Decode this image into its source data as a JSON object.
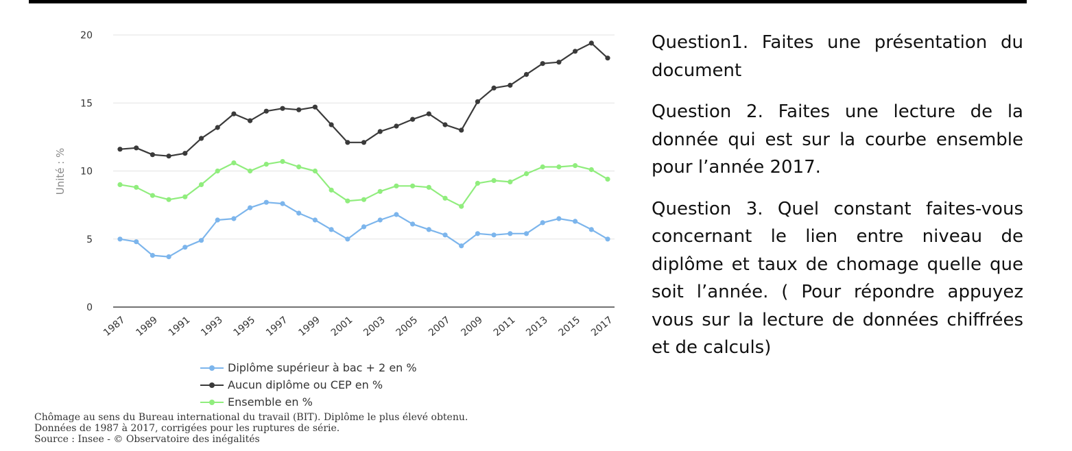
{
  "chart_data": {
    "type": "line",
    "x": [
      1987,
      1988,
      1989,
      1990,
      1991,
      1992,
      1993,
      1994,
      1995,
      1996,
      1997,
      1998,
      1999,
      2000,
      2001,
      2002,
      2003,
      2004,
      2005,
      2006,
      2007,
      2008,
      2009,
      2010,
      2011,
      2012,
      2013,
      2014,
      2015,
      2016,
      2017
    ],
    "x_tick_labels": [
      "1987",
      "1989",
      "1991",
      "1993",
      "1995",
      "1997",
      "1999",
      "2001",
      "2003",
      "2005",
      "2007",
      "2009",
      "2011",
      "2013",
      "2015",
      "2017"
    ],
    "y_tick_labels": [
      "0",
      "5",
      "10",
      "15",
      "20"
    ],
    "ylim": [
      0,
      20
    ],
    "ylabel": "Unité : %",
    "grid": "horizontal",
    "legend_position": "bottom",
    "series": [
      {
        "name": "Diplôme supérieur à bac + 2 en %",
        "color": "#7cb5ec",
        "values": [
          5.0,
          4.8,
          3.8,
          3.7,
          4.4,
          4.9,
          6.4,
          6.5,
          7.3,
          7.7,
          7.6,
          6.9,
          6.4,
          5.7,
          5.0,
          5.9,
          6.4,
          6.8,
          6.1,
          5.7,
          5.3,
          4.5,
          5.4,
          5.3,
          5.4,
          5.4,
          6.2,
          6.5,
          6.3,
          5.7,
          5.0
        ]
      },
      {
        "name": "Aucun diplôme ou CEP en %",
        "color": "#3a3a3a",
        "values": [
          11.6,
          11.7,
          11.2,
          11.1,
          11.3,
          12.4,
          13.2,
          14.2,
          13.7,
          14.4,
          14.6,
          14.5,
          14.7,
          13.4,
          12.1,
          12.1,
          12.9,
          13.3,
          13.8,
          14.2,
          13.4,
          13.0,
          15.1,
          16.1,
          16.3,
          17.1,
          17.9,
          18.0,
          18.8,
          19.4,
          18.3
        ]
      },
      {
        "name": "Ensemble en %",
        "color": "#90ed7d",
        "values": [
          9.0,
          8.8,
          8.2,
          7.9,
          8.1,
          9.0,
          10.0,
          10.6,
          10.0,
          10.5,
          10.7,
          10.3,
          10.0,
          8.6,
          7.8,
          7.9,
          8.5,
          8.9,
          8.9,
          8.8,
          8.0,
          7.4,
          9.1,
          9.3,
          9.2,
          9.8,
          10.3,
          10.3,
          10.4,
          10.1,
          9.4
        ]
      }
    ]
  },
  "notes": [
    "Chômage au sens du Bureau international du travail (BIT). Diplôme le plus élevé obtenu.",
    "Données de 1987 à 2017, corrigées pour les ruptures de série.",
    "Source : Insee - © Observatoire des inégalités"
  ],
  "questions": [
    "Question1. Faites une présentation du document",
    "Question 2. Faites une lecture de la donnée qui est sur  la courbe ensemble pour l’année 2017.",
    "Question 3.  Quel constant faites-vous concernant le lien entre niveau de diplôme et taux de chomage quelle que soit l’année. ( Pour répondre appuyez vous sur la lecture de données chiffrées et de calculs)"
  ]
}
